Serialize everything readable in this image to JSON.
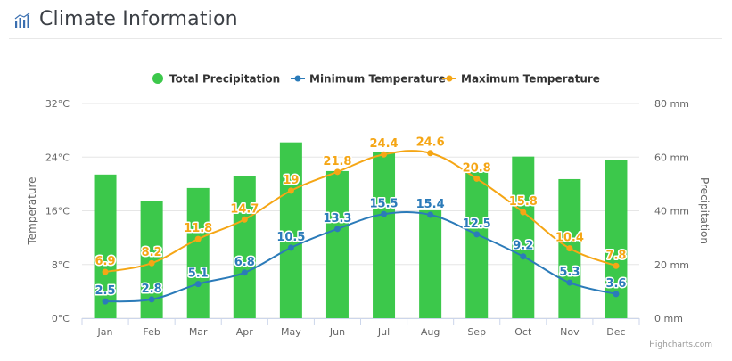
{
  "header": {
    "title": "Climate Information",
    "icon": "bar-chart-icon"
  },
  "chart_data": {
    "type": "bar",
    "categories": [
      "Jan",
      "Feb",
      "Mar",
      "Apr",
      "May",
      "Jun",
      "Jul",
      "Aug",
      "Sep",
      "Oct",
      "Nov",
      "Dec"
    ],
    "series": [
      {
        "name": "Total Precipitation",
        "kind": "bar",
        "axis": "right",
        "color": "#3cc84b",
        "values": [
          53.5,
          43.5,
          48.5,
          52.8,
          65.5,
          54.8,
          62.0,
          40.2,
          54.5,
          60.2,
          51.8,
          59.0
        ]
      },
      {
        "name": "Minimum Temperature",
        "kind": "line",
        "axis": "left",
        "color": "#2b7bb9",
        "values": [
          2.5,
          2.8,
          5.1,
          6.8,
          10.5,
          13.3,
          15.5,
          15.4,
          12.5,
          9.2,
          5.3,
          3.6
        ]
      },
      {
        "name": "Maximum Temperature",
        "kind": "line",
        "axis": "left",
        "color": "#f5a615",
        "values": [
          6.9,
          8.2,
          11.8,
          14.7,
          19,
          21.8,
          24.4,
          24.6,
          20.8,
          15.8,
          10.4,
          7.8
        ]
      }
    ],
    "left_axis": {
      "label": "Temperature",
      "ylim": [
        0,
        32
      ],
      "ticks": [
        0,
        8,
        16,
        24,
        32
      ],
      "tick_labels": [
        "0°C",
        "8°C",
        "16°C",
        "24°C",
        "32°C"
      ]
    },
    "right_axis": {
      "label": "Precipitation",
      "ylim": [
        0,
        80
      ],
      "ticks": [
        0,
        20,
        40,
        60,
        80
      ],
      "tick_labels": [
        "0 mm",
        "20 mm",
        "40 mm",
        "60 mm",
        "80 mm"
      ]
    },
    "legend_position": "top-center",
    "grid": true,
    "credits": "Highcharts.com"
  }
}
